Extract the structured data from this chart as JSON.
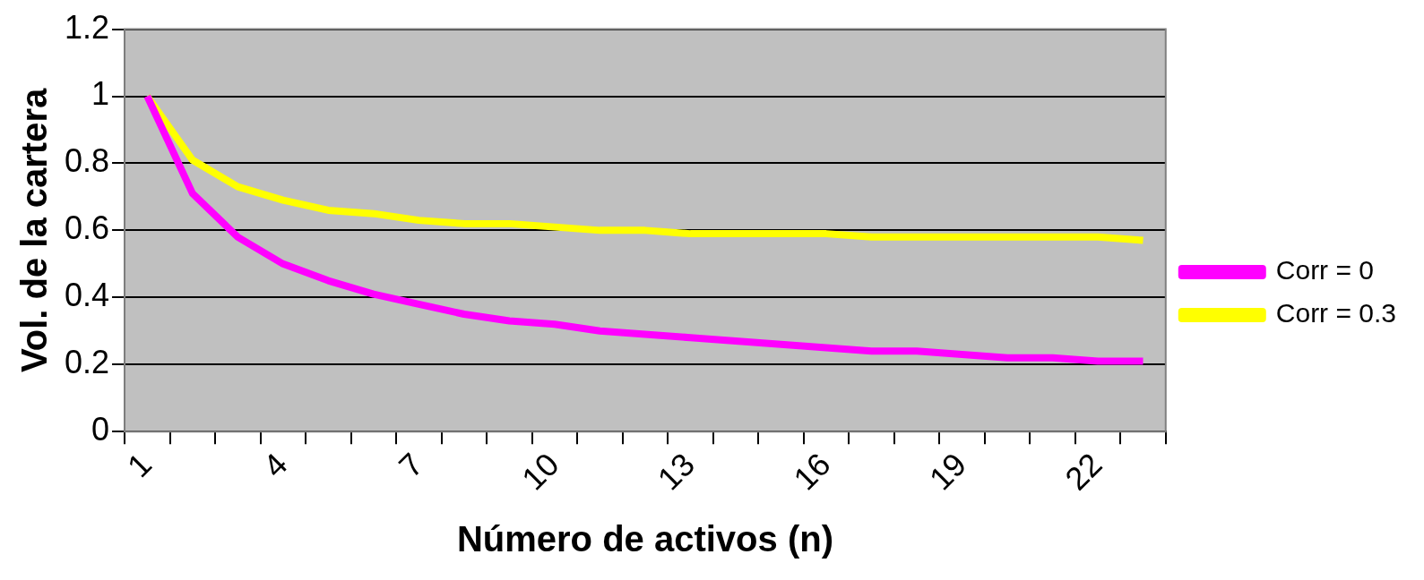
{
  "chart_data": {
    "type": "line",
    "xlabel": "Número de activos (n)",
    "ylabel": "Vol. de la cartera",
    "categories": [
      "1",
      null,
      null,
      "4",
      null,
      null,
      "7",
      null,
      null,
      "10",
      null,
      null,
      "13",
      null,
      null,
      "16",
      null,
      null,
      "19",
      null,
      null,
      "22",
      null
    ],
    "series": [
      {
        "name": "Corr = 0",
        "color": "#ff00ff",
        "values": [
          1,
          0.71,
          0.58,
          0.5,
          0.45,
          0.41,
          0.38,
          0.35,
          0.33,
          0.32,
          0.3,
          0.29,
          0.28,
          0.27,
          0.26,
          0.25,
          0.24,
          0.24,
          0.23,
          0.22,
          0.22,
          0.21,
          0.21
        ]
      },
      {
        "name": "Corr = 0.3",
        "color": "#ffff00",
        "values": [
          1,
          0.81,
          0.73,
          0.69,
          0.66,
          0.65,
          0.63,
          0.62,
          0.62,
          0.61,
          0.6,
          0.6,
          0.59,
          0.59,
          0.59,
          0.59,
          0.58,
          0.58,
          0.58,
          0.58,
          0.58,
          0.58,
          0.57
        ]
      }
    ],
    "ylim": [
      0,
      1.2
    ],
    "yticks": [
      0,
      0.2,
      0.4,
      0.6,
      0.8,
      1,
      1.2
    ],
    "grid": "y",
    "legend": "right",
    "marker": "none",
    "line_style": "solid"
  }
}
